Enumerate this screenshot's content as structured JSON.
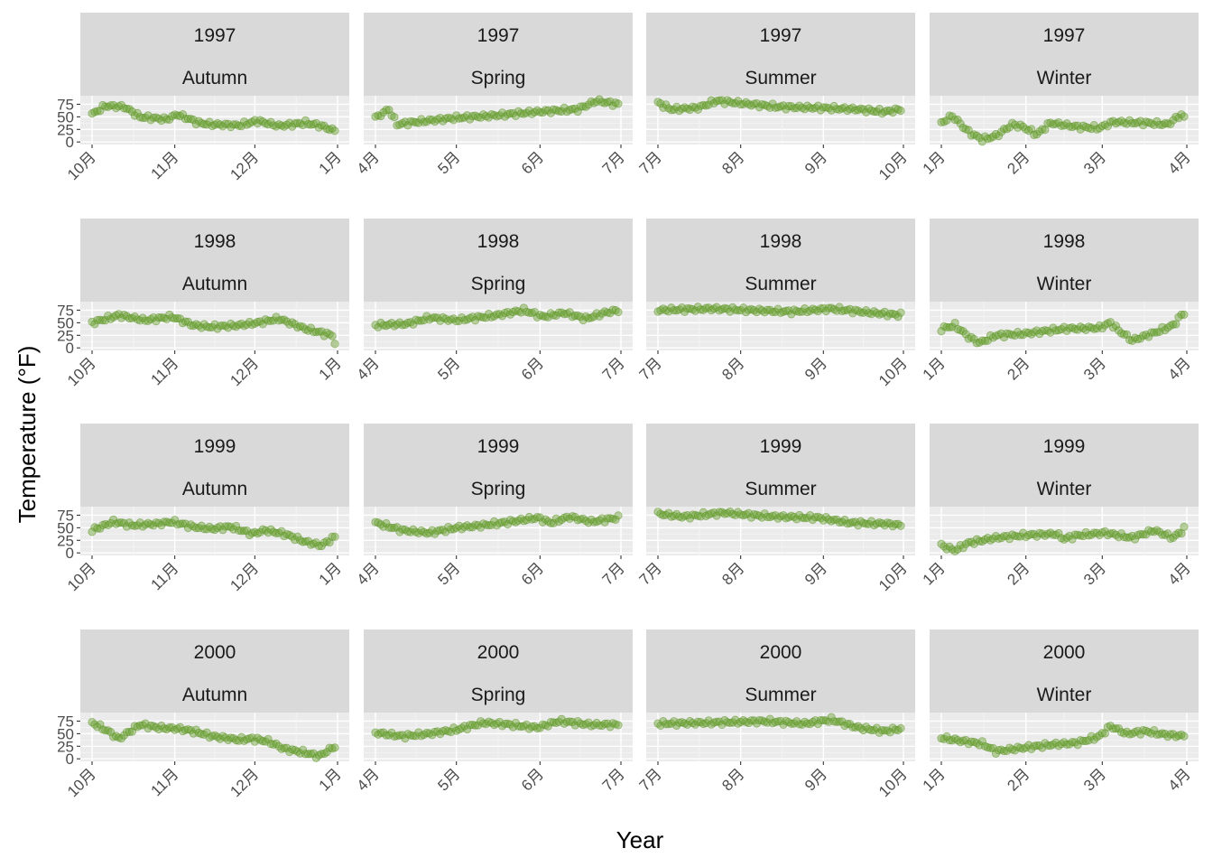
{
  "chart_data": {
    "type": "scatter",
    "xlabel": "Year",
    "ylabel": "Temperature (°F)",
    "y_ticks": [
      0,
      25,
      50,
      75
    ],
    "ylim": [
      -5,
      92
    ],
    "grid": true,
    "point_color": "#6aa131",
    "panel_background": "#ebebeb",
    "strip_background": "#d9d9d9",
    "season_axes": {
      "Autumn": {
        "start": "10-01",
        "end": "12-31",
        "tick_labels": [
          "10月",
          "11月",
          "12月",
          "1月"
        ],
        "tick_days": [
          0,
          31,
          61,
          92
        ]
      },
      "Spring": {
        "start": "04-01",
        "end": "06-30",
        "tick_labels": [
          "4月",
          "5月",
          "6月",
          "7月"
        ],
        "tick_days": [
          0,
          30,
          61,
          91
        ]
      },
      "Summer": {
        "start": "07-01",
        "end": "09-30",
        "tick_labels": [
          "7月",
          "8月",
          "9月",
          "10月"
        ],
        "tick_days": [
          0,
          31,
          62,
          92
        ]
      },
      "Winter": {
        "start": "01-01",
        "end": "03-31",
        "tick_labels": [
          "1月",
          "2月",
          "3月",
          "4月"
        ],
        "tick_days": [
          0,
          31,
          59,
          90
        ]
      }
    },
    "facet_years": [
      "1997",
      "1998",
      "1999",
      "2000"
    ],
    "facet_seasons": [
      "Autumn",
      "Spring",
      "Summer",
      "Winter"
    ],
    "panels": [
      {
        "year": "1997",
        "season": "Autumn",
        "anchors": [
          [
            0,
            55
          ],
          [
            5,
            72
          ],
          [
            12,
            70
          ],
          [
            18,
            50
          ],
          [
            28,
            45
          ],
          [
            32,
            55
          ],
          [
            40,
            38
          ],
          [
            45,
            35
          ],
          [
            55,
            33
          ],
          [
            62,
            42
          ],
          [
            70,
            32
          ],
          [
            80,
            38
          ],
          [
            86,
            32
          ],
          [
            91,
            22
          ]
        ]
      },
      {
        "year": "1997",
        "season": "Spring",
        "anchors": [
          [
            0,
            48
          ],
          [
            5,
            65
          ],
          [
            8,
            35
          ],
          [
            15,
            40
          ],
          [
            30,
            48
          ],
          [
            45,
            53
          ],
          [
            60,
            60
          ],
          [
            75,
            65
          ],
          [
            82,
            82
          ],
          [
            90,
            75
          ]
        ]
      },
      {
        "year": "1997",
        "season": "Summer",
        "anchors": [
          [
            0,
            78
          ],
          [
            5,
            65
          ],
          [
            15,
            68
          ],
          [
            22,
            82
          ],
          [
            35,
            75
          ],
          [
            45,
            70
          ],
          [
            60,
            68
          ],
          [
            75,
            65
          ],
          [
            85,
            60
          ],
          [
            91,
            65
          ]
        ]
      },
      {
        "year": "1997",
        "season": "Winter",
        "anchors": [
          [
            0,
            38
          ],
          [
            4,
            52
          ],
          [
            10,
            20
          ],
          [
            15,
            5
          ],
          [
            20,
            12
          ],
          [
            26,
            35
          ],
          [
            30,
            30
          ],
          [
            35,
            15
          ],
          [
            40,
            38
          ],
          [
            50,
            30
          ],
          [
            58,
            28
          ],
          [
            63,
            40
          ],
          [
            75,
            38
          ],
          [
            83,
            35
          ],
          [
            88,
            55
          ],
          [
            90,
            42
          ]
        ]
      },
      {
        "year": "1998",
        "season": "Autumn",
        "anchors": [
          [
            0,
            50
          ],
          [
            10,
            65
          ],
          [
            20,
            55
          ],
          [
            30,
            62
          ],
          [
            38,
            45
          ],
          [
            45,
            42
          ],
          [
            55,
            45
          ],
          [
            62,
            50
          ],
          [
            70,
            58
          ],
          [
            80,
            38
          ],
          [
            86,
            30
          ],
          [
            90,
            25
          ],
          [
            91,
            10
          ]
        ]
      },
      {
        "year": "1998",
        "season": "Spring",
        "anchors": [
          [
            0,
            45
          ],
          [
            12,
            48
          ],
          [
            20,
            60
          ],
          [
            30,
            55
          ],
          [
            45,
            65
          ],
          [
            55,
            75
          ],
          [
            62,
            62
          ],
          [
            70,
            70
          ],
          [
            78,
            58
          ],
          [
            85,
            70
          ],
          [
            90,
            75
          ]
        ]
      },
      {
        "year": "1998",
        "season": "Summer",
        "anchors": [
          [
            0,
            75
          ],
          [
            20,
            78
          ],
          [
            35,
            75
          ],
          [
            50,
            72
          ],
          [
            65,
            78
          ],
          [
            80,
            70
          ],
          [
            92,
            65
          ]
        ]
      },
      {
        "year": "1998",
        "season": "Winter",
        "anchors": [
          [
            0,
            38
          ],
          [
            5,
            45
          ],
          [
            10,
            22
          ],
          [
            14,
            10
          ],
          [
            20,
            25
          ],
          [
            30,
            28
          ],
          [
            45,
            38
          ],
          [
            58,
            40
          ],
          [
            62,
            50
          ],
          [
            65,
            35
          ],
          [
            70,
            15
          ],
          [
            78,
            30
          ],
          [
            85,
            45
          ],
          [
            88,
            65
          ],
          [
            90,
            72
          ]
        ]
      },
      {
        "year": "1999",
        "season": "Autumn",
        "anchors": [
          [
            0,
            45
          ],
          [
            8,
            62
          ],
          [
            15,
            55
          ],
          [
            25,
            58
          ],
          [
            30,
            62
          ],
          [
            38,
            52
          ],
          [
            45,
            48
          ],
          [
            52,
            52
          ],
          [
            60,
            38
          ],
          [
            65,
            45
          ],
          [
            72,
            38
          ],
          [
            80,
            22
          ],
          [
            86,
            15
          ],
          [
            91,
            32
          ]
        ]
      },
      {
        "year": "1999",
        "season": "Spring",
        "anchors": [
          [
            0,
            60
          ],
          [
            10,
            45
          ],
          [
            20,
            40
          ],
          [
            30,
            50
          ],
          [
            40,
            55
          ],
          [
            50,
            62
          ],
          [
            60,
            70
          ],
          [
            65,
            60
          ],
          [
            72,
            72
          ],
          [
            80,
            62
          ],
          [
            90,
            70
          ]
        ]
      },
      {
        "year": "1999",
        "season": "Summer",
        "anchors": [
          [
            0,
            78
          ],
          [
            10,
            72
          ],
          [
            25,
            80
          ],
          [
            35,
            75
          ],
          [
            45,
            72
          ],
          [
            60,
            70
          ],
          [
            72,
            60
          ],
          [
            85,
            58
          ],
          [
            91,
            55
          ]
        ]
      },
      {
        "year": "1999",
        "season": "Winter",
        "anchors": [
          [
            0,
            15
          ],
          [
            5,
            5
          ],
          [
            10,
            20
          ],
          [
            20,
            30
          ],
          [
            30,
            35
          ],
          [
            42,
            38
          ],
          [
            45,
            28
          ],
          [
            50,
            35
          ],
          [
            60,
            40
          ],
          [
            70,
            30
          ],
          [
            78,
            45
          ],
          [
            85,
            30
          ],
          [
            90,
            52
          ]
        ]
      },
      {
        "year": "2000",
        "season": "Autumn",
        "anchors": [
          [
            0,
            72
          ],
          [
            6,
            55
          ],
          [
            10,
            40
          ],
          [
            18,
            68
          ],
          [
            25,
            62
          ],
          [
            32,
            60
          ],
          [
            38,
            55
          ],
          [
            45,
            45
          ],
          [
            55,
            38
          ],
          [
            60,
            40
          ],
          [
            66,
            35
          ],
          [
            72,
            20
          ],
          [
            80,
            12
          ],
          [
            85,
            5
          ],
          [
            91,
            25
          ]
        ]
      },
      {
        "year": "2000",
        "season": "Spring",
        "anchors": [
          [
            0,
            52
          ],
          [
            10,
            45
          ],
          [
            20,
            50
          ],
          [
            30,
            58
          ],
          [
            40,
            72
          ],
          [
            50,
            68
          ],
          [
            60,
            62
          ],
          [
            68,
            75
          ],
          [
            80,
            68
          ],
          [
            90,
            68
          ]
        ]
      },
      {
        "year": "2000",
        "season": "Summer",
        "anchors": [
          [
            0,
            70
          ],
          [
            20,
            72
          ],
          [
            40,
            75
          ],
          [
            55,
            70
          ],
          [
            65,
            78
          ],
          [
            75,
            62
          ],
          [
            85,
            55
          ],
          [
            91,
            60
          ]
        ]
      },
      {
        "year": "2000",
        "season": "Winter",
        "anchors": [
          [
            0,
            42
          ],
          [
            8,
            35
          ],
          [
            15,
            30
          ],
          [
            20,
            15
          ],
          [
            30,
            22
          ],
          [
            40,
            28
          ],
          [
            50,
            32
          ],
          [
            58,
            45
          ],
          [
            62,
            65
          ],
          [
            68,
            50
          ],
          [
            75,
            55
          ],
          [
            82,
            48
          ],
          [
            90,
            45
          ]
        ]
      }
    ]
  }
}
